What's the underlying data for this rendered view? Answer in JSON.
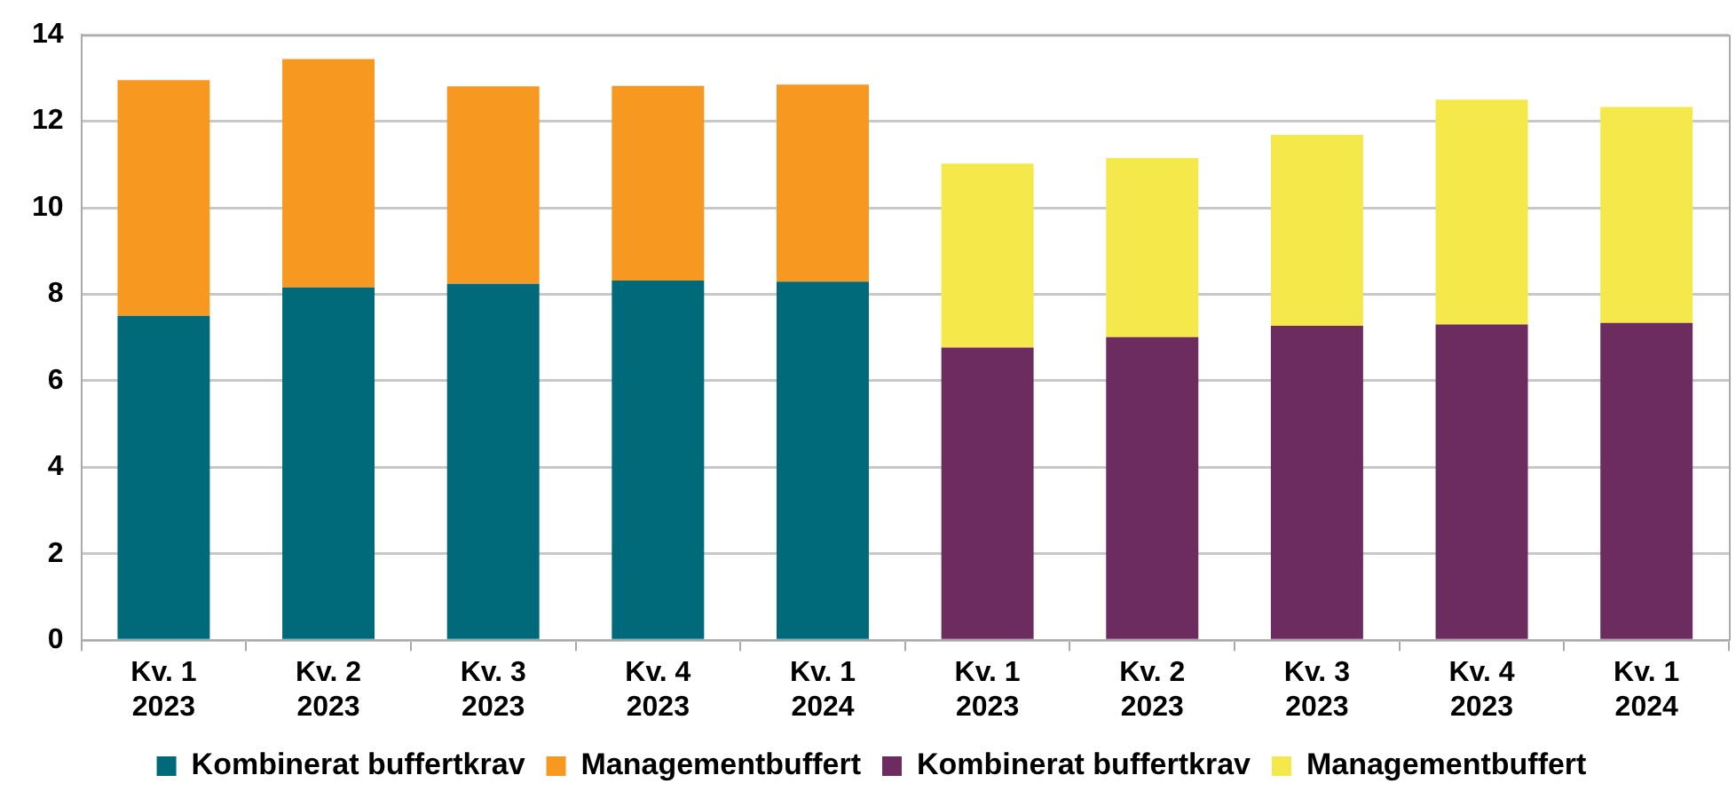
{
  "chart_data": {
    "type": "bar",
    "stacked": true,
    "categories": [
      "Kv. 1\n2023",
      "Kv. 2\n2023",
      "Kv. 3\n2023",
      "Kv. 4\n2023",
      "Kv. 1\n2024",
      "Kv. 1\n2023",
      "Kv. 2\n2023",
      "Kv. 3\n2023",
      "Kv. 4\n2023",
      "Kv. 1\n2024"
    ],
    "series": [
      {
        "name": "Kombinerat buffertkrav",
        "color": "#006a7a",
        "values": [
          7.5,
          8.16,
          8.24,
          8.32,
          8.29,
          null,
          null,
          null,
          null,
          null
        ]
      },
      {
        "name": "Managementbuffert",
        "color": "#f79820",
        "values": [
          5.45,
          5.28,
          4.57,
          4.5,
          4.56,
          null,
          null,
          null,
          null,
          null
        ]
      },
      {
        "name": "Kombinerat buffertkrav",
        "color": "#6d2c5f",
        "values": [
          null,
          null,
          null,
          null,
          null,
          6.77,
          7.01,
          7.27,
          7.3,
          7.34
        ]
      },
      {
        "name": "Managementbuffert",
        "color": "#f5e84a",
        "values": [
          null,
          null,
          null,
          null,
          null,
          4.25,
          4.14,
          4.42,
          5.2,
          4.99
        ]
      }
    ],
    "ylim": [
      0,
      14
    ],
    "yticks": [
      0,
      2,
      4,
      6,
      8,
      10,
      12,
      14
    ],
    "grid": "y",
    "legend": "bottom"
  }
}
